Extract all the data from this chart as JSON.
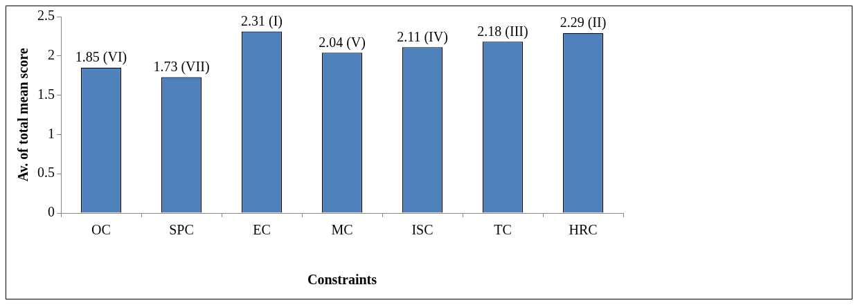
{
  "chart_data": {
    "type": "bar",
    "xlabel": "Constraints",
    "ylabel": "Av. of total mean score",
    "categories": [
      "OC",
      "SPC",
      "EC",
      "MC",
      "ISC",
      "TC",
      "HRC"
    ],
    "values": [
      1.85,
      1.73,
      2.31,
      2.04,
      2.11,
      2.18,
      2.29
    ],
    "value_labels": [
      "1.85 (VI)",
      "1.73 (VII)",
      "2.31 (I)",
      "2.04 (V)",
      "2.11 (IV)",
      "2.18 (III)",
      "2.29 (II)"
    ],
    "color": "#4f81bd",
    "ylim": [
      0,
      2.5
    ],
    "yticks": [
      0,
      0.5,
      1,
      1.5,
      2,
      2.5
    ],
    "grid": false,
    "legend": false
  }
}
